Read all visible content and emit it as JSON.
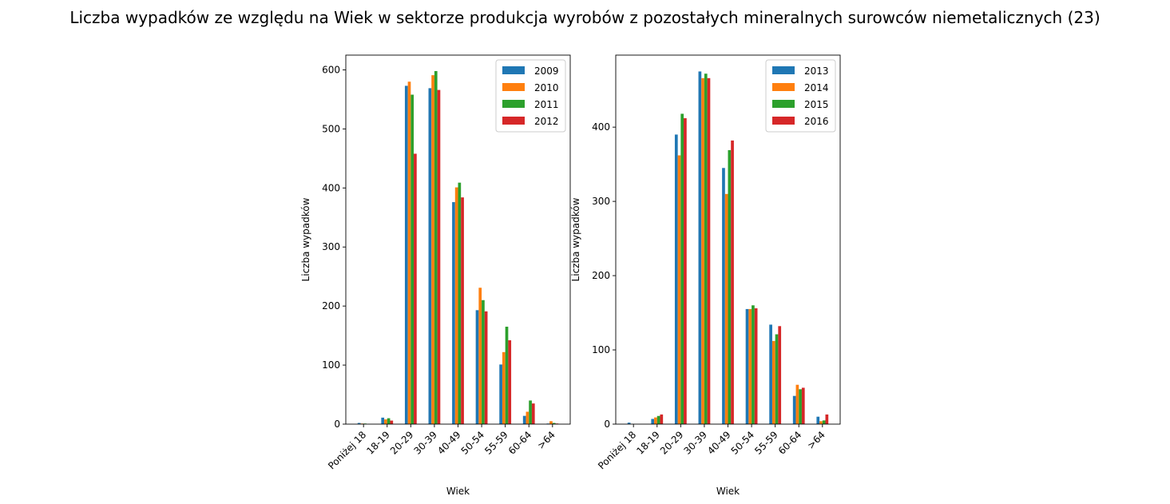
{
  "title": "Liczba wypadków ze względu na Wiek w sektorze produkcja wyrobów z pozostałych mineralnych surowców niemetalicznych (23)",
  "colors": [
    "#1f77b4",
    "#ff7f0e",
    "#2ca02c",
    "#d62728"
  ],
  "chart_data": [
    {
      "type": "bar",
      "xlabel": "Wiek",
      "ylabel": "Liczba wypadków",
      "ylim": [
        0,
        625
      ],
      "yticks": [
        0,
        100,
        200,
        300,
        400,
        500,
        600
      ],
      "legend": "top-right",
      "categories": [
        "Poniżej 18",
        "18-19",
        "20-29",
        "30-39",
        "40-49",
        "50-54",
        "55-59",
        "60-64",
        ">64"
      ],
      "series": [
        {
          "name": "2009",
          "values": [
            2,
            11,
            573,
            569,
            376,
            193,
            101,
            14,
            1
          ]
        },
        {
          "name": "2010",
          "values": [
            1,
            8,
            580,
            591,
            401,
            231,
            122,
            21,
            5
          ]
        },
        {
          "name": "2011",
          "values": [
            1,
            10,
            558,
            598,
            409,
            210,
            165,
            40,
            2
          ]
        },
        {
          "name": "2012",
          "values": [
            0,
            6,
            458,
            566,
            384,
            191,
            142,
            35,
            1
          ]
        }
      ]
    },
    {
      "type": "bar",
      "xlabel": "Wiek",
      "ylabel": "Liczba wypadków",
      "ylim": [
        0,
        497
      ],
      "yticks": [
        0,
        100,
        200,
        300,
        400
      ],
      "legend": "top-right",
      "categories": [
        "Poniżej 18",
        "18-19",
        "20-29",
        "30-39",
        "40-49",
        "50-54",
        "55-59",
        "60-64",
        ">64"
      ],
      "series": [
        {
          "name": "2013",
          "values": [
            2,
            7,
            390,
            475,
            345,
            155,
            134,
            38,
            10
          ]
        },
        {
          "name": "2014",
          "values": [
            0,
            9,
            362,
            466,
            310,
            155,
            112,
            53,
            4
          ]
        },
        {
          "name": "2015",
          "values": [
            0,
            11,
            418,
            472,
            369,
            160,
            121,
            47,
            5
          ]
        },
        {
          "name": "2016",
          "values": [
            0,
            13,
            412,
            466,
            382,
            156,
            132,
            49,
            13
          ]
        }
      ]
    }
  ]
}
